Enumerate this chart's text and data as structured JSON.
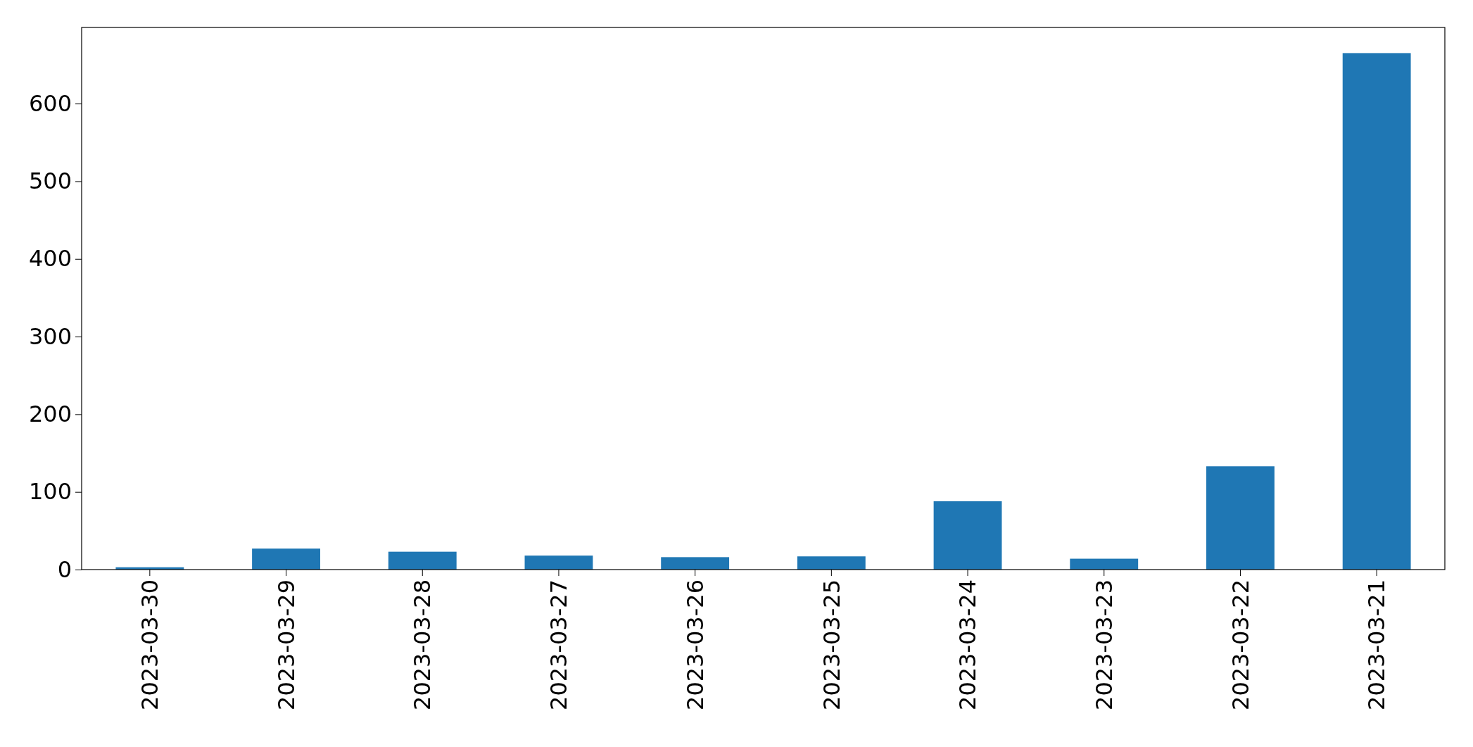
{
  "chart_data": {
    "type": "bar",
    "categories": [
      "2023-03-30",
      "2023-03-29",
      "2023-03-28",
      "2023-03-27",
      "2023-03-26",
      "2023-03-25",
      "2023-03-24",
      "2023-03-23",
      "2023-03-22",
      "2023-03-21"
    ],
    "values": [
      3,
      27,
      23,
      18,
      16,
      17,
      88,
      14,
      133,
      665
    ],
    "color": "#1f77b4",
    "ylim": [
      0,
      698
    ],
    "yticks": [
      0,
      100,
      200,
      300,
      400,
      500,
      600
    ],
    "grid": false
  }
}
